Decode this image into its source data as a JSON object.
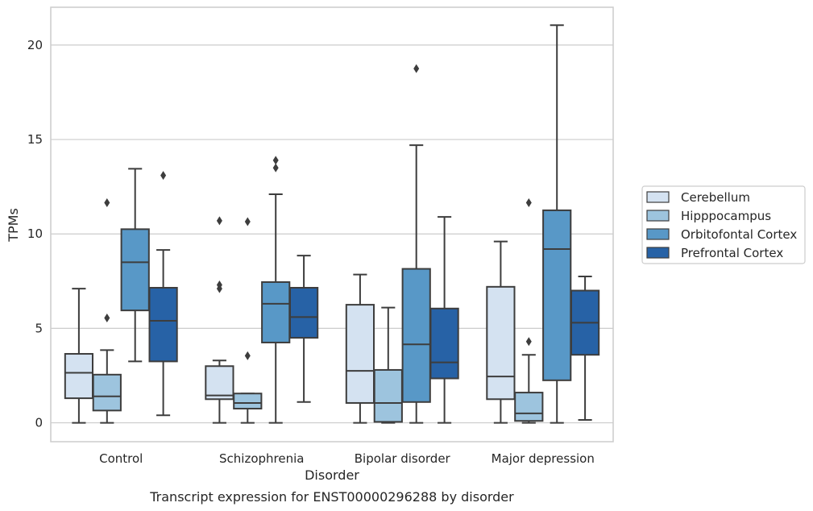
{
  "chart_data": {
    "type": "boxplot",
    "title": "",
    "caption": "Transcript expression for ENST00000296288 by disorder",
    "xlabel": "Disorder",
    "ylabel": "TPMs",
    "ylim": [
      -1,
      22
    ],
    "yticks": [
      0,
      5,
      10,
      15,
      20
    ],
    "grid": "horizontal",
    "legend_position": "right",
    "categories": [
      "Control",
      "Schizophrenia",
      "Bipolar disorder",
      "Major depression"
    ],
    "series": [
      {
        "name": "Cerebellum",
        "color": "#d4e2f1",
        "boxes": [
          {
            "whislo": 0,
            "q1": 1.3,
            "med": 2.65,
            "q3": 3.65,
            "whishi": 7.1,
            "fliers": []
          },
          {
            "whislo": 0,
            "q1": 1.25,
            "med": 1.45,
            "q3": 3.0,
            "whishi": 3.3,
            "fliers": [
              7.1,
              7.3,
              10.7
            ]
          },
          {
            "whislo": 0,
            "q1": 1.05,
            "med": 2.75,
            "q3": 6.25,
            "whishi": 7.85,
            "fliers": []
          },
          {
            "whislo": 0,
            "q1": 1.25,
            "med": 2.45,
            "q3": 7.2,
            "whishi": 9.6,
            "fliers": []
          }
        ]
      },
      {
        "name": "Hipppocampus",
        "color": "#9dc4de",
        "boxes": [
          {
            "whislo": 0,
            "q1": 0.65,
            "med": 1.4,
            "q3": 2.55,
            "whishi": 3.85,
            "fliers": [
              5.55,
              11.65
            ]
          },
          {
            "whislo": 0,
            "q1": 0.75,
            "med": 1.05,
            "q3": 1.55,
            "whishi": 1.55,
            "fliers": [
              3.55,
              10.65
            ]
          },
          {
            "whislo": 0,
            "q1": 0.05,
            "med": 1.05,
            "q3": 2.8,
            "whishi": 6.1,
            "fliers": []
          },
          {
            "whislo": 0,
            "q1": 0.1,
            "med": 0.5,
            "q3": 1.6,
            "whishi": 3.6,
            "fliers": [
              4.3,
              11.65
            ]
          }
        ]
      },
      {
        "name": "Orbitofontal Cortex",
        "color": "#5898c7",
        "boxes": [
          {
            "whislo": 3.25,
            "q1": 5.95,
            "med": 8.5,
            "q3": 10.25,
            "whishi": 13.45,
            "fliers": []
          },
          {
            "whislo": 0,
            "q1": 4.25,
            "med": 6.3,
            "q3": 7.45,
            "whishi": 12.1,
            "fliers": [
              13.5,
              13.9
            ]
          },
          {
            "whislo": 0,
            "q1": 1.1,
            "med": 4.15,
            "q3": 8.15,
            "whishi": 14.7,
            "fliers": [
              18.75
            ]
          },
          {
            "whislo": 0,
            "q1": 2.25,
            "med": 9.2,
            "q3": 11.25,
            "whishi": 21.05,
            "fliers": []
          }
        ]
      },
      {
        "name": "Prefrontal Cortex",
        "color": "#2762a6",
        "boxes": [
          {
            "whislo": 0.4,
            "q1": 3.25,
            "med": 5.4,
            "q3": 7.15,
            "whishi": 9.15,
            "fliers": [
              13.1
            ]
          },
          {
            "whislo": 1.1,
            "q1": 4.5,
            "med": 5.6,
            "q3": 7.15,
            "whishi": 8.85,
            "fliers": []
          },
          {
            "whislo": 0,
            "q1": 2.35,
            "med": 3.2,
            "q3": 6.05,
            "whishi": 10.9,
            "fliers": []
          },
          {
            "whislo": 0.15,
            "q1": 3.6,
            "med": 5.3,
            "q3": 7.0,
            "whishi": 7.75,
            "fliers": []
          }
        ]
      }
    ]
  }
}
